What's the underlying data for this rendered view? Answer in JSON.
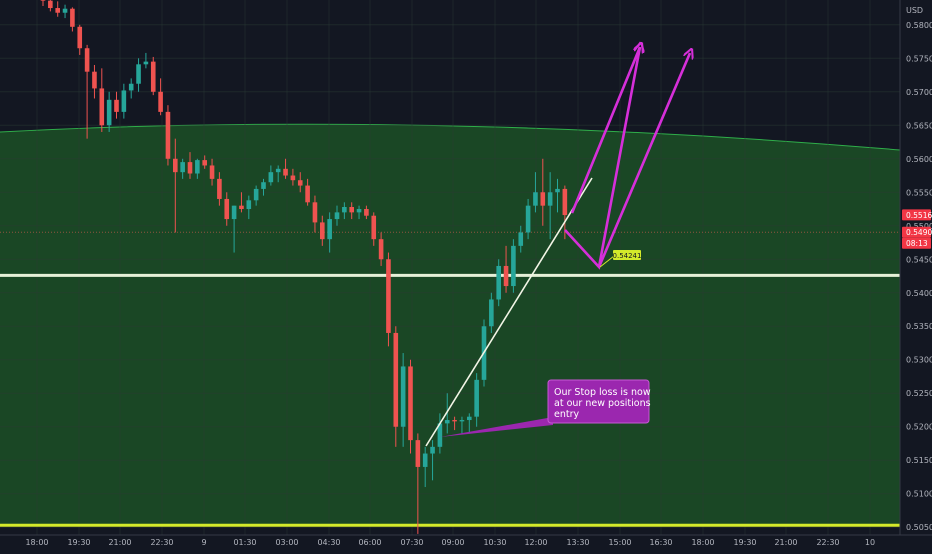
{
  "chart_data": {
    "type": "candlestick",
    "currency_label": "USD",
    "y_ticks": [
      "0.58000",
      "0.57500",
      "0.57000",
      "0.56500",
      "0.56000",
      "0.55500",
      "0.55000",
      "0.54500",
      "0.54000",
      "0.53500",
      "0.53000",
      "0.52500",
      "0.52000",
      "0.51500",
      "0.51000",
      "0.50500"
    ],
    "y_tick_values": [
      0.58,
      0.575,
      0.57,
      0.565,
      0.56,
      0.555,
      0.55,
      0.545,
      0.54,
      0.535,
      0.53,
      0.525,
      0.52,
      0.515,
      0.51,
      0.505
    ],
    "ylim": [
      0.5016,
      0.5837
    ],
    "x_ticks": [
      "18:00",
      "19:30",
      "21:00",
      "22:30",
      "9",
      "01:30",
      "03:00",
      "04:30",
      "06:00",
      "07:30",
      "09:00",
      "10:30",
      "12:00",
      "13:30",
      "15:00",
      "16:30",
      "18:00",
      "19:30",
      "21:00",
      "22:30",
      "10"
    ],
    "last_price_label": "0.55163",
    "previous_price_label": "0.54904",
    "countdown_label": "08:13",
    "target_level": 0.54241,
    "target_label": "0.54241",
    "horizontal_levels": [
      {
        "value": 0.5426,
        "color": "#e6f0d8"
      },
      {
        "value": 0.5053,
        "color": "#d4ea2a"
      }
    ],
    "zone": {
      "fill": "#1a4a26",
      "edge": "#2fae4a"
    },
    "annotation": {
      "text_lines": [
        "Our Stop loss is now",
        "at our new positions",
        "entry"
      ],
      "color": "#9b27af"
    },
    "candles": [
      [
        0.5845,
        0.585,
        0.5828,
        0.5836
      ],
      [
        0.5836,
        0.584,
        0.582,
        0.5825
      ],
      [
        0.5825,
        0.5835,
        0.5812,
        0.5818
      ],
      [
        0.5818,
        0.583,
        0.581,
        0.5824
      ],
      [
        0.5824,
        0.5826,
        0.579,
        0.5797
      ],
      [
        0.5797,
        0.58,
        0.5755,
        0.5765
      ],
      [
        0.5765,
        0.577,
        0.563,
        0.573
      ],
      [
        0.573,
        0.574,
        0.569,
        0.5705
      ],
      [
        0.5705,
        0.5735,
        0.564,
        0.565
      ],
      [
        0.565,
        0.57,
        0.564,
        0.5688
      ],
      [
        0.5688,
        0.57,
        0.566,
        0.567
      ],
      [
        0.567,
        0.5712,
        0.566,
        0.5702
      ],
      [
        0.5702,
        0.572,
        0.569,
        0.5712
      ],
      [
        0.5712,
        0.575,
        0.57,
        0.5741
      ],
      [
        0.5741,
        0.5758,
        0.5735,
        0.5745
      ],
      [
        0.5745,
        0.5752,
        0.5695,
        0.57
      ],
      [
        0.57,
        0.572,
        0.5665,
        0.567
      ],
      [
        0.567,
        0.568,
        0.559,
        0.56
      ],
      [
        0.56,
        0.563,
        0.549,
        0.558
      ],
      [
        0.558,
        0.56,
        0.557,
        0.5595
      ],
      [
        0.5595,
        0.561,
        0.557,
        0.5578
      ],
      [
        0.5578,
        0.56,
        0.557,
        0.5598
      ],
      [
        0.5598,
        0.5605,
        0.5585,
        0.559
      ],
      [
        0.559,
        0.56,
        0.556,
        0.557
      ],
      [
        0.557,
        0.558,
        0.553,
        0.554
      ],
      [
        0.554,
        0.555,
        0.55,
        0.551
      ],
      [
        0.551,
        0.553,
        0.546,
        0.553
      ],
      [
        0.553,
        0.555,
        0.552,
        0.5525
      ],
      [
        0.5525,
        0.5545,
        0.551,
        0.5538
      ],
      [
        0.5538,
        0.556,
        0.553,
        0.5555
      ],
      [
        0.5555,
        0.557,
        0.5545,
        0.5565
      ],
      [
        0.5565,
        0.559,
        0.556,
        0.558
      ],
      [
        0.558,
        0.559,
        0.5565,
        0.5585
      ],
      [
        0.5585,
        0.56,
        0.557,
        0.5575
      ],
      [
        0.5575,
        0.5585,
        0.556,
        0.5568
      ],
      [
        0.5568,
        0.558,
        0.555,
        0.556
      ],
      [
        0.556,
        0.557,
        0.553,
        0.5535
      ],
      [
        0.5535,
        0.5545,
        0.549,
        0.5505
      ],
      [
        0.5505,
        0.5515,
        0.547,
        0.548
      ],
      [
        0.548,
        0.552,
        0.546,
        0.551
      ],
      [
        0.551,
        0.553,
        0.55,
        0.552
      ],
      [
        0.552,
        0.5535,
        0.551,
        0.5528
      ],
      [
        0.5528,
        0.5535,
        0.551,
        0.552
      ],
      [
        0.552,
        0.553,
        0.551,
        0.5525
      ],
      [
        0.5525,
        0.553,
        0.551,
        0.5515
      ],
      [
        0.5515,
        0.552,
        0.547,
        0.548
      ],
      [
        0.548,
        0.549,
        0.544,
        0.545
      ],
      [
        0.545,
        0.546,
        0.532,
        0.534
      ],
      [
        0.534,
        0.535,
        0.517,
        0.52
      ],
      [
        0.52,
        0.531,
        0.517,
        0.529
      ],
      [
        0.529,
        0.53,
        0.516,
        0.518
      ],
      [
        0.518,
        0.519,
        0.504,
        0.514
      ],
      [
        0.514,
        0.517,
        0.511,
        0.516
      ],
      [
        0.516,
        0.518,
        0.512,
        0.517
      ],
      [
        0.517,
        0.522,
        0.516,
        0.5205
      ],
      [
        0.5205,
        0.525,
        0.519,
        0.521
      ],
      [
        0.521,
        0.5215,
        0.5195,
        0.5208
      ],
      [
        0.5208,
        0.5215,
        0.519,
        0.521
      ],
      [
        0.521,
        0.522,
        0.519,
        0.5215
      ],
      [
        0.5215,
        0.528,
        0.52,
        0.527
      ],
      [
        0.527,
        0.536,
        0.526,
        0.535
      ],
      [
        0.535,
        0.54,
        0.534,
        0.539
      ],
      [
        0.539,
        0.545,
        0.538,
        0.544
      ],
      [
        0.544,
        0.547,
        0.54,
        0.541
      ],
      [
        0.541,
        0.548,
        0.54,
        0.547
      ],
      [
        0.547,
        0.55,
        0.546,
        0.549
      ],
      [
        0.549,
        0.554,
        0.548,
        0.553
      ],
      [
        0.553,
        0.558,
        0.552,
        0.555
      ],
      [
        0.555,
        0.56,
        0.55,
        0.553
      ],
      [
        0.553,
        0.558,
        0.548,
        0.555
      ],
      [
        0.555,
        0.557,
        0.552,
        0.5555
      ],
      [
        0.5555,
        0.556,
        0.548,
        0.5516
      ]
    ]
  }
}
